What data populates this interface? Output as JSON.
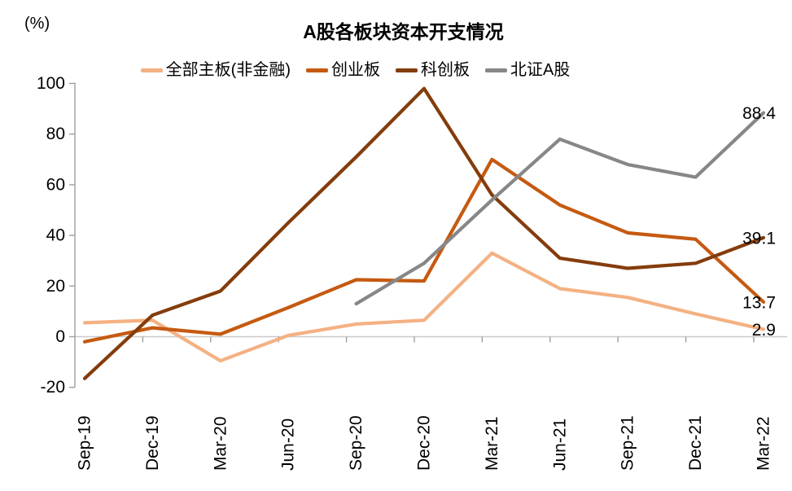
{
  "header": {
    "title": "A股各板块资本开支情况",
    "unit_label": "(%)"
  },
  "chart_data": {
    "type": "line",
    "title": "A股各板块资本开支情况",
    "unit": "%",
    "categories": [
      "Sep-19",
      "Dec-19",
      "Mar-20",
      "Jun-20",
      "Sep-20",
      "Dec-20",
      "Mar-21",
      "Jun-21",
      "Sep-21",
      "Dec-21",
      "Mar-22"
    ],
    "series": [
      {
        "name": "全部主板(非金融)",
        "color": "#F4B183",
        "values": [
          5.5,
          6.5,
          -9.5,
          0.5,
          5,
          6.5,
          33,
          19,
          15.5,
          9,
          2.9
        ],
        "end_label": "2.9"
      },
      {
        "name": "创业板",
        "color": "#C55A11",
        "values": [
          -2,
          3.5,
          1,
          11.5,
          22.5,
          22,
          70,
          52,
          41,
          38.5,
          13.7
        ],
        "end_label": "13.7"
      },
      {
        "name": "科创板",
        "color": "#843C0C",
        "values": [
          -16.5,
          8.5,
          18,
          45,
          71,
          98,
          56,
          31,
          27,
          29,
          39.1
        ],
        "end_label": "39.1"
      },
      {
        "name": "北证A股",
        "color": "#878787",
        "values": [
          null,
          null,
          null,
          null,
          13,
          29,
          54,
          78,
          68,
          63,
          88.4
        ],
        "end_label": "88.4"
      }
    ],
    "ylim": [
      -20,
      100
    ],
    "yticks": [
      -20,
      0,
      20,
      40,
      60,
      80,
      100
    ],
    "xlabel": "",
    "ylabel": "(%)",
    "grid": "zero-baseline-only",
    "legend_position": "top",
    "style": {
      "axis_color": "#9e9e9e",
      "gridline_color": "#c9c9c9",
      "text_color": "#000000",
      "line_width": 4.2
    }
  }
}
